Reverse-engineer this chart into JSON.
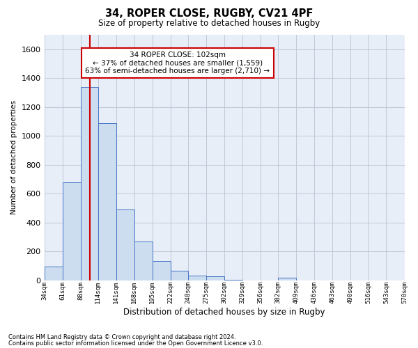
{
  "title": "34, ROPER CLOSE, RUGBY, CV21 4PF",
  "subtitle": "Size of property relative to detached houses in Rugby",
  "xlabel": "Distribution of detached houses by size in Rugby",
  "ylabel": "Number of detached properties",
  "footnote1": "Contains HM Land Registry data © Crown copyright and database right 2024.",
  "footnote2": "Contains public sector information licensed under the Open Government Licence v3.0.",
  "annotation_line1": "34 ROPER CLOSE: 102sqm",
  "annotation_line2": "← 37% of detached houses are smaller (1,559)",
  "annotation_line3": "63% of semi-detached houses are larger (2,710) →",
  "bar_color": "#ccddf0",
  "bar_edge_color": "#4472c4",
  "grid_color": "#c0c8d8",
  "red_line_color": "#cc0000",
  "bins": [
    34,
    61,
    88,
    114,
    141,
    168,
    195,
    222,
    248,
    275,
    302,
    329,
    356,
    382,
    409,
    436,
    463,
    490,
    516,
    543,
    570
  ],
  "bin_labels": [
    "34sqm",
    "61sqm",
    "88sqm",
    "114sqm",
    "141sqm",
    "168sqm",
    "195sqm",
    "222sqm",
    "248sqm",
    "275sqm",
    "302sqm",
    "329sqm",
    "356sqm",
    "382sqm",
    "409sqm",
    "436sqm",
    "463sqm",
    "490sqm",
    "516sqm",
    "543sqm",
    "570sqm"
  ],
  "values": [
    95,
    680,
    1340,
    1090,
    490,
    270,
    135,
    68,
    33,
    30,
    5,
    0,
    0,
    20,
    0,
    0,
    0,
    0,
    0,
    0
  ],
  "ylim": [
    0,
    1700
  ],
  "yticks": [
    0,
    200,
    400,
    600,
    800,
    1000,
    1200,
    1400,
    1600
  ],
  "red_line_x": 102,
  "background_color": "#ffffff",
  "plot_bg_color": "#e8eef8"
}
